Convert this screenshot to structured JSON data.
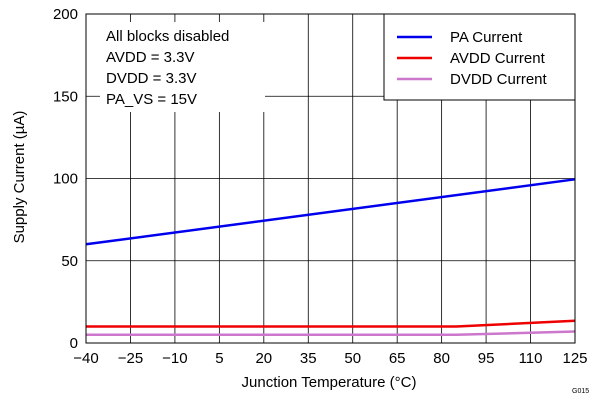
{
  "chart_data": {
    "type": "line",
    "xlabel": "Junction Temperature (°C)",
    "ylabel": "Supply Current (µA)",
    "xlim": [
      -40,
      125
    ],
    "ylim": [
      0,
      200
    ],
    "x_ticks": [
      -40,
      -25,
      -10,
      5,
      20,
      35,
      50,
      65,
      80,
      95,
      110,
      125
    ],
    "x_tick_labels": [
      "−40",
      "−25",
      "−10",
      "5",
      "20",
      "35",
      "50",
      "65",
      "80",
      "95",
      "110",
      "125"
    ],
    "y_ticks": [
      0,
      50,
      100,
      150,
      200
    ],
    "y_tick_labels": [
      "0",
      "50",
      "100",
      "150",
      "200"
    ],
    "grid": true,
    "legend_position": "top-right",
    "annotations": [
      "All blocks disabled",
      "AVDD = 3.3V",
      "DVDD = 3.3V",
      "PA_VS = 15V"
    ],
    "series": [
      {
        "name": "PA Current",
        "color": "#0000ee",
        "x": [
          -40,
          125
        ],
        "y": [
          60,
          99.5
        ]
      },
      {
        "name": "AVDD Current",
        "color": "#ee0000",
        "x": [
          -40,
          85,
          125
        ],
        "y": [
          10,
          10,
          13.5
        ]
      },
      {
        "name": "DVDD Current",
        "color": "#cc77cc",
        "x": [
          -40,
          85,
          125
        ],
        "y": [
          5,
          5,
          7
        ]
      }
    ],
    "figure_id": "G015"
  }
}
